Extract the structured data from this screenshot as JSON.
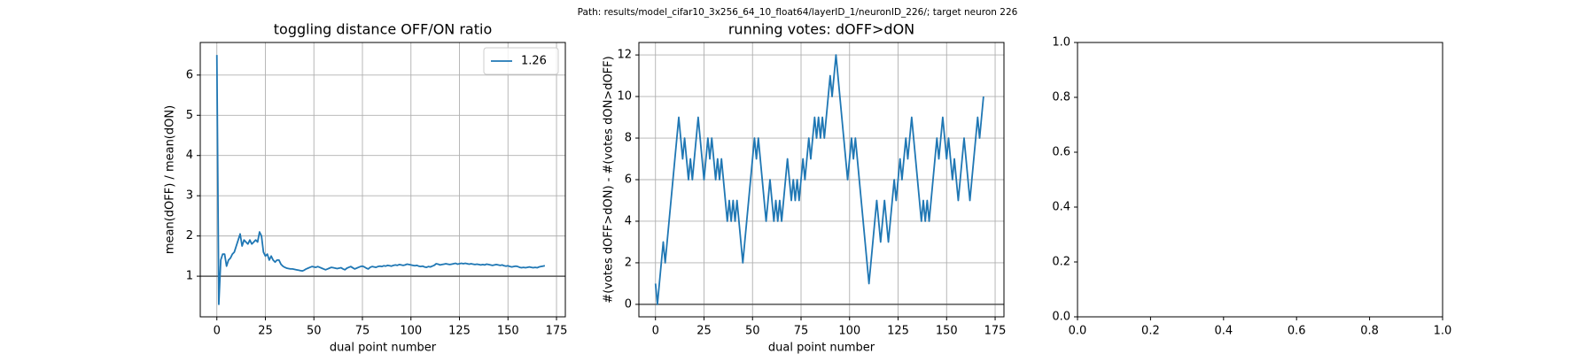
{
  "title": "Path: results/model_cifar10_3x256_64_10_float64/layerID_1/neuronID_226/; target neuron 226",
  "chart_data": [
    {
      "type": "line",
      "title": "toggling distance OFF/ON ratio",
      "xlabel": "dual point number",
      "ylabel": "mean(dOFF) / mean(dON)",
      "xlim": [
        -8.55,
        179.55
      ],
      "ylim": [
        -0.01,
        6.81
      ],
      "xticks": [
        0,
        25,
        50,
        75,
        100,
        125,
        150,
        175
      ],
      "yticks": [
        1,
        2,
        3,
        4,
        5,
        6
      ],
      "grid": true,
      "legend": "upper right",
      "hlines": [
        {
          "value": 1,
          "color": "#555555"
        }
      ],
      "x": [
        0,
        1,
        2,
        3,
        4,
        5,
        6,
        7,
        8,
        9,
        10,
        11,
        12,
        13,
        14,
        15,
        16,
        17,
        18,
        19,
        20,
        21,
        22,
        23,
        24,
        25,
        26,
        27,
        28,
        29,
        30,
        31,
        32,
        33,
        34,
        35,
        36,
        37,
        38,
        39,
        40,
        41,
        42,
        43,
        44,
        45,
        46,
        47,
        48,
        49,
        50,
        51,
        52,
        53,
        54,
        55,
        56,
        57,
        58,
        59,
        60,
        61,
        62,
        63,
        64,
        65,
        66,
        67,
        68,
        69,
        70,
        71,
        72,
        73,
        74,
        75,
        76,
        77,
        78,
        79,
        80,
        81,
        82,
        83,
        84,
        85,
        86,
        87,
        88,
        89,
        90,
        91,
        92,
        93,
        94,
        95,
        96,
        97,
        98,
        99,
        100,
        101,
        102,
        103,
        104,
        105,
        106,
        107,
        108,
        109,
        110,
        111,
        112,
        113,
        114,
        115,
        116,
        117,
        118,
        119,
        120,
        121,
        122,
        123,
        124,
        125,
        126,
        127,
        128,
        129,
        130,
        131,
        132,
        133,
        134,
        135,
        136,
        137,
        138,
        139,
        140,
        141,
        142,
        143,
        144,
        145,
        146,
        147,
        148,
        149,
        150,
        151,
        152,
        153,
        154,
        155,
        156,
        157,
        158,
        159,
        160,
        161,
        162,
        163,
        164,
        165,
        166,
        167,
        168,
        169
      ],
      "series": [
        {
          "name": "1.26",
          "color": "#1f77b4",
          "values": [
            6.5,
            0.3,
            1.4,
            1.55,
            1.55,
            1.25,
            1.4,
            1.45,
            1.55,
            1.6,
            1.75,
            1.9,
            2.05,
            1.75,
            1.9,
            1.85,
            1.8,
            1.9,
            1.8,
            1.85,
            1.9,
            1.85,
            2.1,
            2.0,
            1.6,
            1.5,
            1.55,
            1.4,
            1.5,
            1.4,
            1.35,
            1.4,
            1.4,
            1.3,
            1.25,
            1.22,
            1.2,
            1.19,
            1.18,
            1.18,
            1.17,
            1.16,
            1.15,
            1.14,
            1.13,
            1.15,
            1.18,
            1.2,
            1.22,
            1.24,
            1.23,
            1.22,
            1.24,
            1.22,
            1.2,
            1.18,
            1.16,
            1.18,
            1.2,
            1.22,
            1.21,
            1.2,
            1.19,
            1.2,
            1.21,
            1.18,
            1.16,
            1.2,
            1.22,
            1.24,
            1.21,
            1.18,
            1.2,
            1.22,
            1.24,
            1.25,
            1.23,
            1.2,
            1.18,
            1.22,
            1.24,
            1.23,
            1.22,
            1.24,
            1.25,
            1.24,
            1.26,
            1.25,
            1.27,
            1.26,
            1.25,
            1.27,
            1.28,
            1.27,
            1.29,
            1.28,
            1.27,
            1.28,
            1.3,
            1.29,
            1.28,
            1.27,
            1.26,
            1.27,
            1.25,
            1.24,
            1.25,
            1.23,
            1.22,
            1.24,
            1.23,
            1.25,
            1.27,
            1.31,
            1.3,
            1.28,
            1.29,
            1.3,
            1.31,
            1.3,
            1.29,
            1.3,
            1.31,
            1.32,
            1.3,
            1.31,
            1.32,
            1.31,
            1.32,
            1.31,
            1.3,
            1.31,
            1.3,
            1.29,
            1.3,
            1.29,
            1.28,
            1.29,
            1.28,
            1.3,
            1.29,
            1.28,
            1.27,
            1.28,
            1.29,
            1.28,
            1.27,
            1.28,
            1.26,
            1.25,
            1.26,
            1.24,
            1.23,
            1.24,
            1.25,
            1.24,
            1.22,
            1.21,
            1.22,
            1.21,
            1.22,
            1.23,
            1.22,
            1.21,
            1.22,
            1.21,
            1.23,
            1.24,
            1.25,
            1.26
          ]
        }
      ]
    },
    {
      "type": "line",
      "title": "running votes: dOFF>dON",
      "xlabel": "dual point number",
      "ylabel": "#(votes dOFF>dON) - #(votes dON>dOFF)",
      "xlim": [
        -8.55,
        179.55
      ],
      "ylim": [
        -0.6,
        12.6
      ],
      "xticks": [
        0,
        25,
        50,
        75,
        100,
        125,
        150,
        175
      ],
      "yticks": [
        0,
        2,
        4,
        6,
        8,
        10,
        12
      ],
      "grid": true,
      "hlines": [
        {
          "value": 0,
          "color": "#555555"
        }
      ],
      "x": [
        0,
        1,
        2,
        3,
        4,
        5,
        6,
        7,
        8,
        9,
        10,
        11,
        12,
        13,
        14,
        15,
        16,
        17,
        18,
        19,
        20,
        21,
        22,
        23,
        24,
        25,
        26,
        27,
        28,
        29,
        30,
        31,
        32,
        33,
        34,
        35,
        36,
        37,
        38,
        39,
        40,
        41,
        42,
        43,
        44,
        45,
        46,
        47,
        48,
        49,
        50,
        51,
        52,
        53,
        54,
        55,
        56,
        57,
        58,
        59,
        60,
        61,
        62,
        63,
        64,
        65,
        66,
        67,
        68,
        69,
        70,
        71,
        72,
        73,
        74,
        75,
        76,
        77,
        78,
        79,
        80,
        81,
        82,
        83,
        84,
        85,
        86,
        87,
        88,
        89,
        90,
        91,
        92,
        93,
        94,
        95,
        96,
        97,
        98,
        99,
        100,
        101,
        102,
        103,
        104,
        105,
        106,
        107,
        108,
        109,
        110,
        111,
        112,
        113,
        114,
        115,
        116,
        117,
        118,
        119,
        120,
        121,
        122,
        123,
        124,
        125,
        126,
        127,
        128,
        129,
        130,
        131,
        132,
        133,
        134,
        135,
        136,
        137,
        138,
        139,
        140,
        141,
        142,
        143,
        144,
        145,
        146,
        147,
        148,
        149,
        150,
        151,
        152,
        153,
        154,
        155,
        156,
        157,
        158,
        159,
        160,
        161,
        162,
        163,
        164,
        165,
        166,
        167,
        168,
        169
      ],
      "series": [
        {
          "color": "#1f77b4",
          "values": [
            1,
            0,
            1,
            2,
            3,
            2,
            3,
            4,
            5,
            6,
            7,
            8,
            9,
            8,
            7,
            8,
            7,
            6,
            7,
            6,
            7,
            8,
            9,
            8,
            7,
            6,
            7,
            8,
            7,
            8,
            7,
            6,
            7,
            6,
            7,
            6,
            5,
            4,
            5,
            4,
            5,
            4,
            5,
            4,
            3,
            2,
            3,
            4,
            5,
            6,
            7,
            8,
            7,
            8,
            7,
            6,
            5,
            4,
            5,
            6,
            5,
            4,
            5,
            4,
            5,
            4,
            5,
            6,
            7,
            6,
            5,
            6,
            5,
            6,
            5,
            6,
            7,
            6,
            7,
            8,
            7,
            8,
            9,
            8,
            9,
            8,
            9,
            8,
            9,
            10,
            11,
            10,
            11,
            12,
            11,
            10,
            9,
            8,
            7,
            6,
            7,
            8,
            7,
            8,
            7,
            6,
            5,
            4,
            3,
            2,
            1,
            2,
            3,
            4,
            5,
            4,
            3,
            4,
            5,
            4,
            3,
            4,
            5,
            6,
            5,
            6,
            7,
            6,
            7,
            8,
            7,
            8,
            9,
            8,
            7,
            6,
            5,
            4,
            5,
            4,
            5,
            4,
            5,
            6,
            7,
            8,
            7,
            8,
            9,
            8,
            7,
            8,
            7,
            6,
            7,
            6,
            5,
            6,
            7,
            8,
            7,
            6,
            5,
            6,
            7,
            8,
            9,
            8,
            9,
            10
          ]
        }
      ]
    },
    {
      "type": "line",
      "xlim": [
        0,
        1
      ],
      "ylim": [
        0,
        1
      ],
      "grid": false,
      "xticks": [
        {
          "value": 0,
          "label": "0.0"
        },
        0.2,
        0.4,
        0.6,
        0.8,
        {
          "value": 1,
          "label": "1.0"
        }
      ],
      "yticks": [
        {
          "value": 0,
          "label": "0.0"
        },
        0.2,
        0.4,
        0.6,
        0.8,
        {
          "value": 1,
          "label": "1.0"
        }
      ]
    }
  ]
}
